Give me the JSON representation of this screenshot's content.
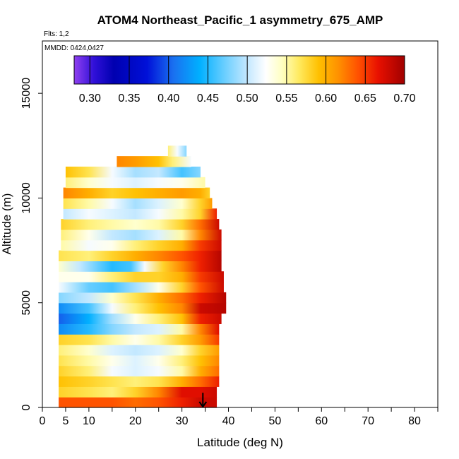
{
  "chart_data": {
    "type": "heatmap",
    "title": "ATOM4 Northeast_Pacific_1 asymmetry_675_AMP",
    "flights_label": "Flts: 1,2",
    "mmdd_label": "MMDD: 0424,0427",
    "xlabel": "Latitude (deg N)",
    "ylabel": "Altitude (m)",
    "xlim": [
      0,
      85
    ],
    "ylim": [
      0,
      17500
    ],
    "x_ticks": [
      0,
      5,
      10,
      20,
      30,
      40,
      50,
      60,
      70,
      80
    ],
    "y_ticks": [
      0,
      5000,
      10000,
      15000
    ],
    "colorbar": {
      "min": 0.28,
      "max": 0.7,
      "ticks": [
        0.3,
        0.35,
        0.4,
        0.45,
        0.5,
        0.55,
        0.6,
        0.65,
        0.7
      ],
      "tick_labels": [
        "0.30",
        "0.35",
        "0.40",
        "0.45",
        "0.50",
        "0.55",
        "0.60",
        "0.65",
        "0.70"
      ]
    },
    "layer_step_m": 500,
    "layers": [
      {
        "alt_bottom": 0,
        "lat_min": 3.5,
        "lat_max": 37.5,
        "lat_points": [
          3.5,
          10,
          15,
          20,
          25,
          30,
          34,
          37.5
        ],
        "values": [
          0.64,
          0.64,
          0.64,
          0.63,
          0.64,
          0.66,
          0.68,
          0.68
        ]
      },
      {
        "alt_bottom": 500,
        "lat_min": 3.5,
        "lat_max": 37.5,
        "lat_points": [
          3.5,
          10,
          15,
          20,
          25,
          30,
          34,
          37.5
        ],
        "values": [
          0.58,
          0.57,
          0.56,
          0.58,
          0.62,
          0.67,
          0.67,
          0.68
        ]
      },
      {
        "alt_bottom": 1000,
        "lat_min": 3.5,
        "lat_max": 38,
        "lat_points": [
          3.5,
          10,
          15,
          20,
          25,
          30,
          34,
          38
        ],
        "values": [
          0.59,
          0.58,
          0.57,
          0.56,
          0.57,
          0.6,
          0.63,
          0.66
        ]
      },
      {
        "alt_bottom": 1500,
        "lat_min": 3.5,
        "lat_max": 38,
        "lat_points": [
          3.5,
          10,
          15,
          20,
          25,
          30,
          34,
          38
        ],
        "values": [
          0.58,
          0.56,
          0.52,
          0.51,
          0.52,
          0.55,
          0.6,
          0.63
        ]
      },
      {
        "alt_bottom": 2000,
        "lat_min": 3.5,
        "lat_max": 38,
        "lat_points": [
          3.5,
          10,
          15,
          20,
          25,
          30,
          34,
          38
        ],
        "values": [
          0.57,
          0.55,
          0.53,
          0.51,
          0.53,
          0.56,
          0.59,
          0.62
        ]
      },
      {
        "alt_bottom": 2500,
        "lat_min": 3.5,
        "lat_max": 38,
        "lat_points": [
          3.5,
          10,
          15,
          20,
          25,
          30,
          34,
          38
        ],
        "values": [
          0.56,
          0.54,
          0.51,
          0.5,
          0.51,
          0.54,
          0.58,
          0.61
        ]
      },
      {
        "alt_bottom": 3000,
        "lat_min": 3.5,
        "lat_max": 38,
        "lat_points": [
          3.5,
          10,
          15,
          20,
          25,
          30,
          34,
          38
        ],
        "values": [
          0.58,
          0.57,
          0.55,
          0.53,
          0.55,
          0.58,
          0.61,
          0.65
        ]
      },
      {
        "alt_bottom": 3500,
        "lat_min": 3.5,
        "lat_max": 38,
        "lat_points": [
          3.5,
          10,
          15,
          20,
          25,
          30,
          34,
          38
        ],
        "values": [
          0.42,
          0.45,
          0.48,
          0.5,
          0.51,
          0.55,
          0.62,
          0.67
        ]
      },
      {
        "alt_bottom": 4000,
        "lat_min": 3.5,
        "lat_max": 38.5,
        "lat_points": [
          3.5,
          10,
          15,
          20,
          25,
          30,
          34,
          38.5
        ],
        "values": [
          0.4,
          0.44,
          0.49,
          0.53,
          0.56,
          0.59,
          0.66,
          0.68
        ]
      },
      {
        "alt_bottom": 4500,
        "lat_min": 3.5,
        "lat_max": 39.5,
        "lat_points": [
          3.5,
          10,
          15,
          20,
          25,
          30,
          34,
          39.5
        ],
        "values": [
          0.42,
          0.46,
          0.52,
          0.56,
          0.59,
          0.62,
          0.68,
          0.69
        ]
      },
      {
        "alt_bottom": 5000,
        "lat_min": 3.5,
        "lat_max": 39.5,
        "lat_points": [
          3.5,
          10,
          15,
          20,
          25,
          30,
          34,
          39.5
        ],
        "values": [
          0.48,
          0.5,
          0.54,
          0.57,
          0.6,
          0.63,
          0.66,
          0.69
        ]
      },
      {
        "alt_bottom": 5500,
        "lat_min": 3.5,
        "lat_max": 39,
        "lat_points": [
          3.5,
          10,
          15,
          20,
          25,
          30,
          34,
          39
        ],
        "values": [
          0.52,
          0.47,
          0.46,
          0.49,
          0.53,
          0.58,
          0.64,
          0.68
        ]
      },
      {
        "alt_bottom": 6000,
        "lat_min": 3.5,
        "lat_max": 39,
        "lat_points": [
          3.5,
          10,
          15,
          20,
          25,
          30,
          34,
          39
        ],
        "values": [
          0.53,
          0.53,
          0.56,
          0.58,
          0.58,
          0.6,
          0.65,
          0.68
        ]
      },
      {
        "alt_bottom": 6500,
        "lat_min": 3.5,
        "lat_max": 38.5,
        "lat_points": [
          3.5,
          8,
          12,
          15,
          19,
          22,
          26,
          30,
          34,
          38.5
        ],
        "values": [
          0.54,
          0.5,
          0.47,
          0.45,
          0.46,
          0.52,
          0.58,
          0.62,
          0.66,
          0.69
        ]
      },
      {
        "alt_bottom": 7000,
        "lat_min": 3.5,
        "lat_max": 38.5,
        "lat_points": [
          3.5,
          10,
          15,
          20,
          25,
          30,
          34,
          38.5
        ],
        "values": [
          0.57,
          0.56,
          0.58,
          0.6,
          0.62,
          0.64,
          0.66,
          0.69
        ]
      },
      {
        "alt_bottom": 7500,
        "lat_min": 4,
        "lat_max": 38.5,
        "lat_points": [
          4,
          10,
          15,
          20,
          25,
          30,
          34,
          38.5
        ],
        "values": [
          0.55,
          0.52,
          0.53,
          0.56,
          0.58,
          0.6,
          0.65,
          0.68
        ]
      },
      {
        "alt_bottom": 8000,
        "lat_min": 4,
        "lat_max": 38.5,
        "lat_points": [
          4,
          10,
          15,
          20,
          25,
          30,
          34,
          38.5
        ],
        "values": [
          0.56,
          0.53,
          0.5,
          0.49,
          0.51,
          0.55,
          0.62,
          0.68
        ]
      },
      {
        "alt_bottom": 8500,
        "lat_min": 4,
        "lat_max": 38,
        "lat_points": [
          4,
          10,
          15,
          20,
          25,
          30,
          34,
          38
        ],
        "values": [
          0.58,
          0.56,
          0.55,
          0.54,
          0.55,
          0.58,
          0.63,
          0.68
        ]
      },
      {
        "alt_bottom": 9000,
        "lat_min": 4.5,
        "lat_max": 37.5,
        "lat_points": [
          4.5,
          10,
          15,
          20,
          25,
          30,
          34,
          37.5
        ],
        "values": [
          0.5,
          0.52,
          0.51,
          0.5,
          0.52,
          0.55,
          0.58,
          0.66
        ]
      },
      {
        "alt_bottom": 9500,
        "lat_min": 4.5,
        "lat_max": 36.5,
        "lat_points": [
          4.5,
          10,
          15,
          20,
          25,
          30,
          34,
          36.5
        ],
        "values": [
          0.57,
          0.55,
          0.52,
          0.49,
          0.51,
          0.54,
          0.58,
          0.61
        ]
      },
      {
        "alt_bottom": 10000,
        "lat_min": 4.5,
        "lat_max": 36,
        "lat_points": [
          4.5,
          10,
          15,
          20,
          25,
          30,
          34,
          36
        ],
        "values": [
          0.62,
          0.6,
          0.58,
          0.59,
          0.6,
          0.61,
          0.6,
          0.58
        ]
      },
      {
        "alt_bottom": 10500,
        "lat_min": 5,
        "lat_max": 35,
        "lat_points": [
          5,
          10,
          15,
          20,
          25,
          30,
          35
        ],
        "values": [
          0.56,
          0.54,
          0.52,
          0.51,
          0.52,
          0.53,
          0.55
        ]
      },
      {
        "alt_bottom": 11000,
        "lat_min": 5,
        "lat_max": 34,
        "lat_points": [
          5,
          10,
          15,
          20,
          25,
          30,
          34
        ],
        "values": [
          0.59,
          0.57,
          0.52,
          0.49,
          0.5,
          0.46,
          0.48
        ]
      },
      {
        "alt_bottom": 11500,
        "lat_min": 16,
        "lat_max": 32,
        "lat_points": [
          16,
          20,
          25,
          28,
          32
        ],
        "values": [
          0.62,
          0.61,
          0.59,
          0.56,
          0.52
        ]
      },
      {
        "alt_bottom": 12000,
        "lat_min": 27,
        "lat_max": 31,
        "lat_points": [
          27,
          29,
          31
        ],
        "values": [
          0.56,
          0.52,
          0.48
        ]
      }
    ],
    "annotations": [
      {
        "type": "arrow",
        "direction": "down",
        "lat": 34.5,
        "alt_top": 700,
        "alt_bottom": 0
      }
    ]
  }
}
